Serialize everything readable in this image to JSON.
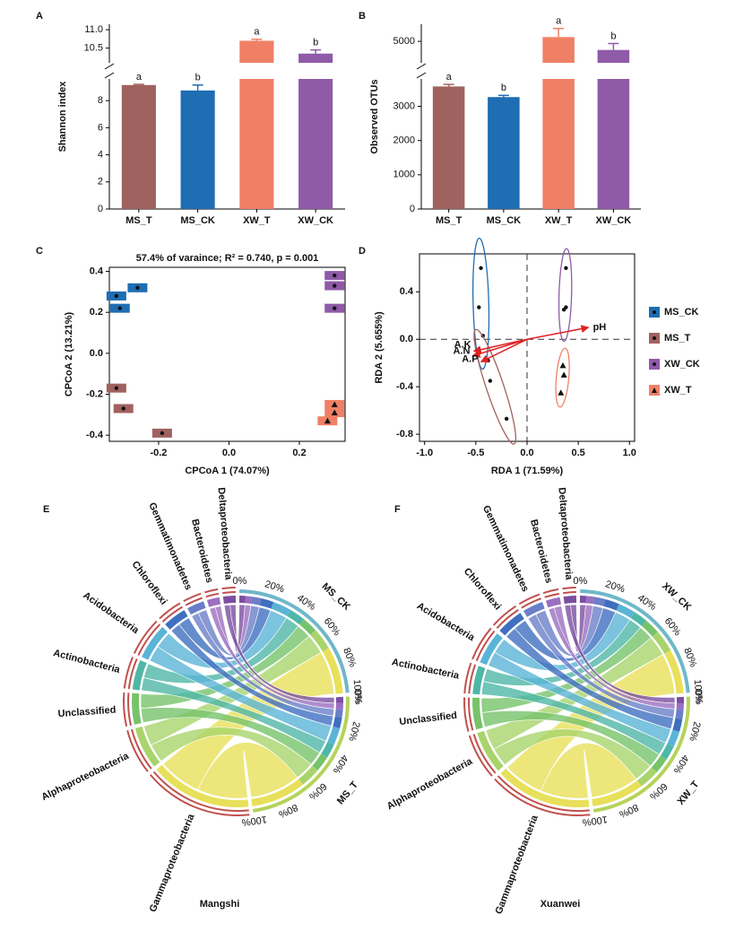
{
  "chart_data": [
    {
      "type": "bar",
      "label": "A",
      "ylabel": "Shannon index",
      "categories": [
        "MS_T",
        "MS_CK",
        "XW_T",
        "XW_CK"
      ],
      "values": [
        9.15,
        8.75,
        10.7,
        10.35
      ],
      "errors": [
        0.05,
        0.4,
        0.04,
        0.1
      ],
      "letters": [
        "a",
        "b",
        "a",
        "b"
      ],
      "colors": [
        "#a0625e",
        "#1f6db3",
        "#ef8066",
        "#8f5aa8"
      ],
      "ylim": [
        0,
        11.15
      ],
      "ybreak": [
        9.6,
        10.1
      ],
      "yticks": [
        0,
        2,
        4,
        6,
        8,
        10.5,
        {
          "value": 11,
          "label": "11.0"
        }
      ]
    },
    {
      "type": "bar",
      "label": "B",
      "ylabel": "Observed OTUs",
      "categories": [
        "MS_T",
        "MS_CK",
        "XW_T",
        "XW_CK"
      ],
      "values": [
        3580,
        3270,
        5100,
        4800
      ],
      "errors": [
        60,
        50,
        200,
        150
      ],
      "letters": [
        "a",
        "b",
        "a",
        "b"
      ],
      "colors": [
        "#a0625e",
        "#1f6db3",
        "#ef8066",
        "#8f5aa8"
      ],
      "ylim": [
        0,
        5400
      ],
      "ybreak": [
        3800,
        4500
      ],
      "yticks": [
        0,
        1000,
        2000,
        3000,
        5000
      ]
    },
    {
      "type": "scatter",
      "label": "C",
      "title": "57.4% of varaince; R² = 0.740, p = 0.001",
      "xlabel": "CPCoA 1 (74.07%)",
      "ylabel": "CPCoA 2 (13.21%)",
      "xlim": [
        -0.34,
        0.33
      ],
      "ylim": [
        -0.43,
        0.42
      ],
      "xticks": [
        -0.2,
        {
          "value": 0,
          "label": "0.0"
        },
        0.2
      ],
      "yticks": [
        -0.4,
        -0.2,
        {
          "value": 0,
          "label": "0.0"
        },
        0.2,
        0.4
      ],
      "series": [
        {
          "name": "MS_CK",
          "color": "#1f6db3",
          "marker": "circle",
          "x": [
            -0.32,
            -0.31,
            -0.26
          ],
          "y": [
            0.28,
            0.22,
            0.32
          ]
        },
        {
          "name": "MS_T",
          "color": "#a0625e",
          "marker": "circle",
          "x": [
            -0.32,
            -0.3,
            -0.19
          ],
          "y": [
            -0.17,
            -0.27,
            -0.39
          ]
        },
        {
          "name": "XW_CK",
          "color": "#8f5aa8",
          "marker": "circle",
          "x": [
            0.3,
            0.3,
            0.3
          ],
          "y": [
            0.38,
            0.33,
            0.22
          ]
        },
        {
          "name": "XW_T",
          "color": "#ef8066",
          "marker": "triangle",
          "x": [
            0.3,
            0.3,
            0.28
          ],
          "y": [
            -0.25,
            -0.29,
            -0.33
          ]
        }
      ]
    },
    {
      "type": "scatter",
      "label": "D",
      "xlabel": "RDA 1 (71.59%)",
      "ylabel": "RDA 2 (5.655%)",
      "legend": "right",
      "xlim": [
        -1.05,
        1.05
      ],
      "ylim": [
        -0.86,
        0.72
      ],
      "xticks": [
        {
          "value": -1,
          "label": "-1.0"
        },
        -0.5,
        {
          "value": 0,
          "label": "0.0"
        },
        0.5,
        {
          "value": 1,
          "label": "1.0"
        }
      ],
      "yticks": [
        -0.8,
        -0.4,
        {
          "value": 0,
          "label": "0.0"
        },
        0.4
      ],
      "series": [
        {
          "name": "MS_CK",
          "color": "#1f6db3",
          "marker": "circle",
          "x": [
            -0.45,
            -0.47,
            -0.43
          ],
          "y": [
            0.6,
            0.27,
            0.03
          ]
        },
        {
          "name": "MS_T",
          "color": "#a0625e",
          "marker": "circle",
          "x": [
            -0.38,
            -0.36,
            -0.2
          ],
          "y": [
            -0.18,
            -0.35,
            -0.67
          ]
        },
        {
          "name": "XW_CK",
          "color": "#8f5aa8",
          "marker": "circle",
          "x": [
            0.38,
            0.36,
            0.38
          ],
          "y": [
            0.6,
            0.25,
            0.27
          ]
        },
        {
          "name": "XW_T",
          "color": "#ef8066",
          "marker": "triangle",
          "x": [
            0.35,
            0.36,
            0.33
          ],
          "y": [
            -0.22,
            -0.3,
            -0.45
          ]
        }
      ],
      "arrows": [
        {
          "name": "pH",
          "x": 0.6,
          "y": 0.1
        },
        {
          "name": "A.K",
          "x": -0.52,
          "y": -0.1
        },
        {
          "name": "A.N",
          "x": -0.53,
          "y": -0.14
        },
        {
          "name": "A.P",
          "x": -0.45,
          "y": -0.19
        }
      ],
      "arrow_color": "#e02020"
    },
    {
      "type": "chord",
      "label": "E",
      "title": "Mangshi",
      "categories": [
        "Deltaproteobacteria",
        "Bacteroidetes",
        "Gemmatimonadetes",
        "Chloroflexi",
        "Acidobacteria",
        "Actinobacteria",
        "Unclassified",
        "Alphaproteobacteria",
        "Gammaproteobacteria"
      ],
      "colors": [
        "#7b4fa0",
        "#9b6fc0",
        "#6a7fc8",
        "#3f6fbf",
        "#5ab4d6",
        "#4fb7a6",
        "#77c36a",
        "#a8d46b",
        "#e8e05a"
      ],
      "series": [
        {
          "name": "MS_CK",
          "values": [
            4,
            4,
            6,
            8,
            12,
            10,
            10,
            14,
            30
          ]
        },
        {
          "name": "MS_T",
          "values": [
            4,
            4,
            5,
            7,
            11,
            9,
            10,
            13,
            35
          ]
        }
      ],
      "ticks": [
        {
          "value": 0,
          "label": "0%"
        },
        {
          "value": 20,
          "label": "20%"
        },
        {
          "value": 40,
          "label": "40%"
        },
        {
          "value": 60,
          "label": "60%"
        },
        {
          "value": 80,
          "label": "80%"
        },
        {
          "value": 100,
          "label": "100%"
        }
      ]
    },
    {
      "type": "chord",
      "label": "F",
      "title": "Xuanwei",
      "categories": [
        "Deltaproteobacteria",
        "Bacteroidetes",
        "Gemmatimonadetes",
        "Chloroflexi",
        "Acidobacteria",
        "Actinobacteria",
        "Unclassified",
        "Alphaproteobacteria",
        "Gammaproteobacteria"
      ],
      "colors": [
        "#7b4fa0",
        "#9b6fc0",
        "#6a7fc8",
        "#3f6fbf",
        "#5ab4d6",
        "#4fb7a6",
        "#77c36a",
        "#a8d46b",
        "#e8e05a"
      ],
      "series": [
        {
          "name": "XW_CK",
          "values": [
            4,
            5,
            7,
            9,
            11,
            9,
            10,
            14,
            28
          ]
        },
        {
          "name": "XW_T",
          "values": [
            4,
            4,
            6,
            8,
            10,
            9,
            10,
            13,
            33
          ]
        }
      ],
      "ticks": [
        {
          "value": 0,
          "label": "0%"
        },
        {
          "value": 20,
          "label": "20%"
        },
        {
          "value": 40,
          "label": "40%"
        },
        {
          "value": 60,
          "label": "60%"
        },
        {
          "value": 80,
          "label": "80%"
        },
        {
          "value": 100,
          "label": "100%"
        }
      ]
    }
  ]
}
